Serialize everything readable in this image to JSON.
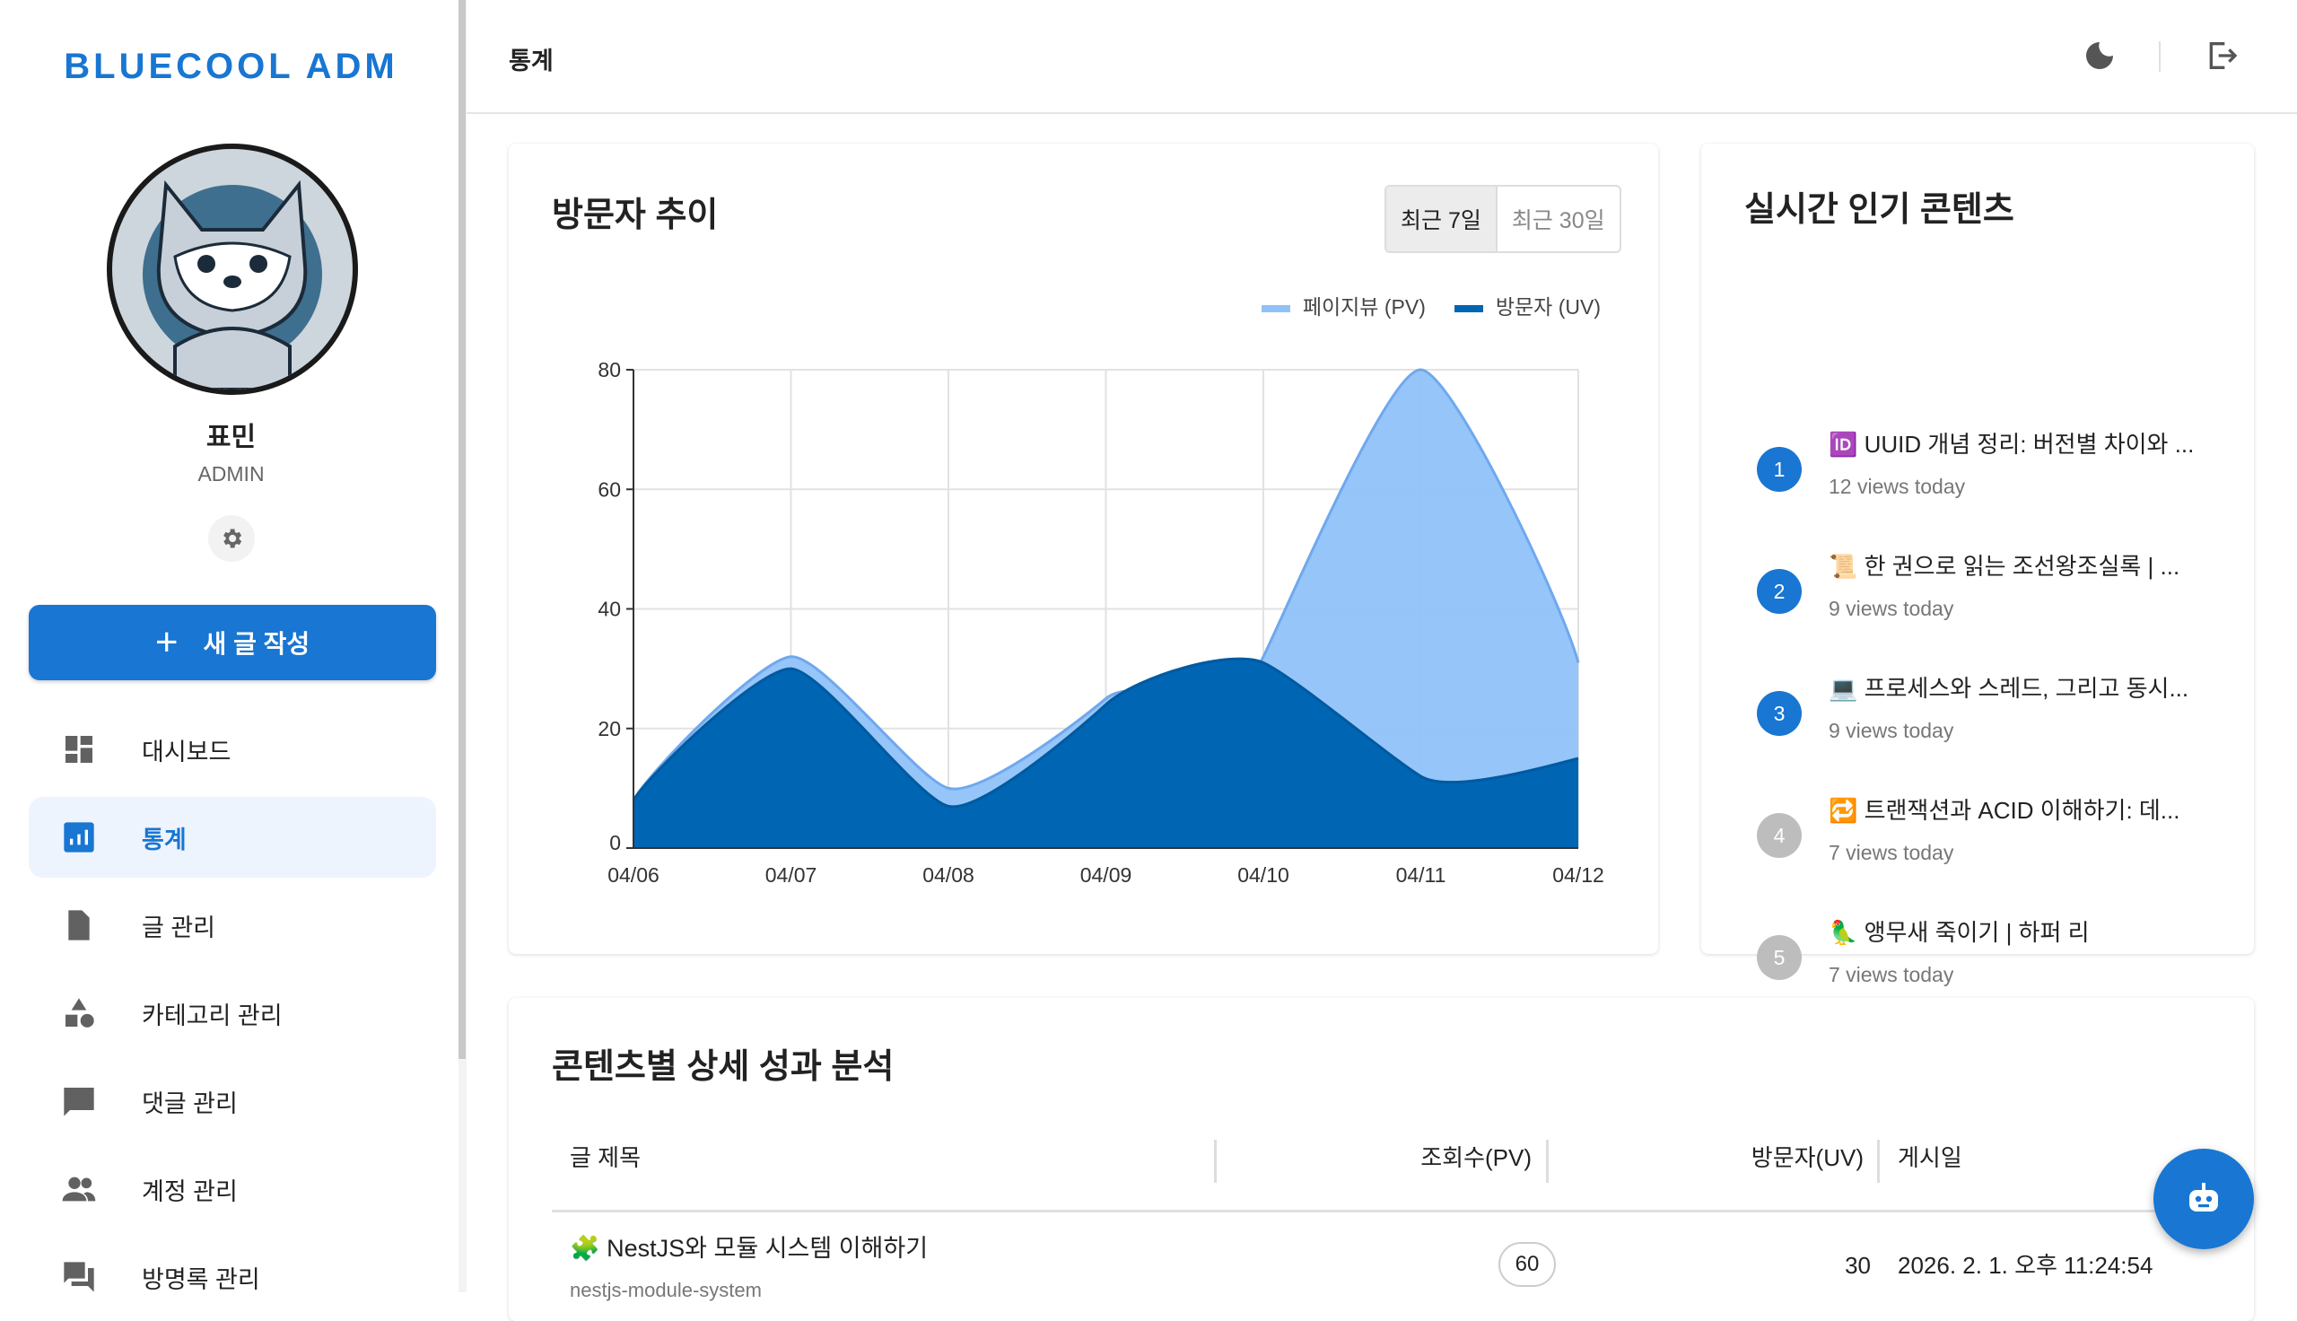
{
  "app": {
    "logo": "BLUECOOL ADM"
  },
  "profile": {
    "name": "표민",
    "role": "ADMIN"
  },
  "sidebar": {
    "new_post_label": "새 글 작성",
    "items": [
      {
        "label": "대시보드",
        "icon": "dashboard-icon"
      },
      {
        "label": "통계",
        "icon": "bar-chart-icon",
        "active": true
      },
      {
        "label": "글 관리",
        "icon": "document-icon"
      },
      {
        "label": "카테고리 관리",
        "icon": "category-icon"
      },
      {
        "label": "댓글 관리",
        "icon": "comment-icon"
      },
      {
        "label": "계정 관리",
        "icon": "people-icon"
      },
      {
        "label": "방명록 관리",
        "icon": "forum-icon"
      }
    ]
  },
  "header": {
    "title": "통계"
  },
  "visitors": {
    "title": "방문자 추이",
    "ranges": [
      "최근 7일",
      "최근 30일"
    ],
    "selected_range": "최근 7일"
  },
  "chart_data": {
    "type": "area",
    "title": "",
    "x": [
      "04/06",
      "04/07",
      "04/08",
      "04/09",
      "04/10",
      "04/11",
      "04/12"
    ],
    "series": [
      {
        "name": "페이지뷰 (PV)",
        "color": "#90c2f9",
        "values": [
          8,
          32,
          10,
          25,
          32,
          80,
          31
        ]
      },
      {
        "name": "방문자 (UV)",
        "color": "#0065b3",
        "values": [
          8,
          30,
          7,
          24,
          31,
          12,
          15
        ]
      }
    ],
    "yticks": [
      "0",
      "20",
      "40",
      "60",
      "80"
    ],
    "ylim": [
      0,
      80
    ],
    "grid": true,
    "legend": "top-right"
  },
  "popular": {
    "title": "실시간 인기 콘텐츠",
    "items": [
      {
        "rank": "1",
        "title": "🆔 UUID 개념 정리: 버전별 차이와 ...",
        "views": "12 views today"
      },
      {
        "rank": "2",
        "title": "📜 한 권으로 읽는 조선왕조실록 | ...",
        "views": "9 views today"
      },
      {
        "rank": "3",
        "title": "💻 프로세스와 스레드, 그리고 동시...",
        "views": "9 views today"
      },
      {
        "rank": "4",
        "title": "🔁 트랜잭션과 ACID 이해하기: 데...",
        "views": "7 views today"
      },
      {
        "rank": "5",
        "title": "🦜 앵무새 죽이기 | 하퍼 리",
        "views": "7 views today"
      }
    ],
    "top_color": "#1976d2",
    "other_color": "#bdbdbd"
  },
  "analysis": {
    "title": "콘텐츠별 상세 성과 분석",
    "columns": [
      "글 제목",
      "조회수(PV)",
      "방문자(UV)",
      "게시일"
    ],
    "rows": [
      {
        "title": "🧩 NestJS와 모듈 시스템 이해하기",
        "slug": "nestjs-module-system",
        "pv": "60",
        "uv": "30",
        "date": "2026. 2. 1. 오후 11:24:54"
      }
    ]
  }
}
